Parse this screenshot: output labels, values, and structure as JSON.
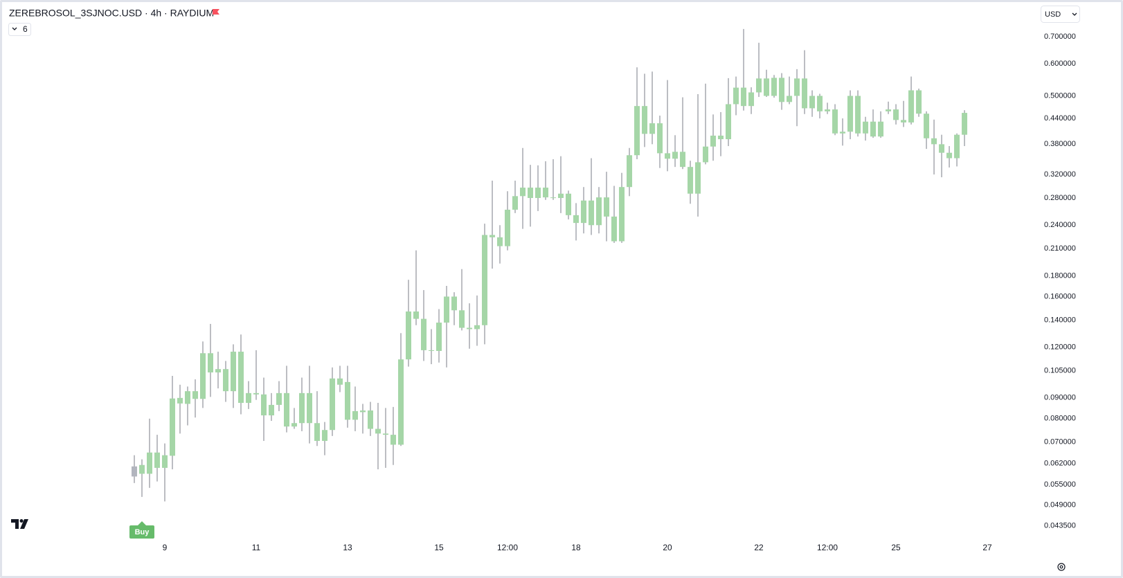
{
  "chart_data": {
    "type": "candlestick",
    "title": "ZEREBROSOL_3SJNOC.USD · 4h · RAYDIUM",
    "indicator_count": "6",
    "currency": "USD",
    "log_scale": true,
    "grid": false,
    "wick_color": "#787b86",
    "x": [
      8.3333,
      8.5,
      8.6667,
      8.8333,
      9,
      9.1667,
      9.3333,
      9.5,
      9.6667,
      9.8333,
      10,
      10.1667,
      10.3333,
      10.5,
      10.6667,
      10.8333,
      11,
      11.1667,
      11.3333,
      11.5,
      11.6667,
      11.8333,
      12,
      12.1667,
      12.3333,
      12.5,
      12.6667,
      12.8333,
      13,
      13.1667,
      13.3333,
      13.5,
      13.6667,
      13.8333,
      14,
      14.1667,
      14.3333,
      14.5,
      14.6667,
      14.8333,
      15,
      15.1667,
      15.3333,
      15.5,
      15.6667,
      15.8333,
      16,
      16.1667,
      16.3333,
      16.5,
      16.6667,
      16.8333,
      17,
      17.1667,
      17.3333,
      17.5,
      17.6667,
      17.8333,
      18,
      18.1667,
      18.3333,
      18.5,
      18.6667,
      18.8333,
      19,
      19.1667,
      19.3333,
      19.5,
      19.6667,
      19.8333,
      20,
      20.1667,
      20.3333,
      20.5,
      20.6667,
      20.8333,
      21,
      21.1667,
      21.3333,
      21.5,
      21.6667,
      21.8333,
      22,
      22.1667,
      22.3333,
      22.5,
      22.6667,
      22.8333,
      23,
      23.1667,
      23.3333,
      23.5,
      23.6667,
      23.8333,
      24,
      24.1667,
      24.3333,
      24.5,
      24.6667,
      24.8333,
      25,
      25.1667,
      25.3333,
      25.5,
      25.6667,
      25.8333,
      26,
      26.1667,
      26.3333,
      26.5
    ],
    "open": [
      0.061,
      0.0585,
      0.0585,
      0.0605,
      0.0605,
      0.0648,
      0.0872,
      0.087,
      0.0895,
      0.0895,
      0.116,
      0.104,
      0.106,
      0.0935,
      0.117,
      0.0875,
      0.0925,
      0.0918,
      0.0815,
      0.0865,
      0.0925,
      0.0765,
      0.078,
      0.0925,
      0.078,
      0.0705,
      0.075,
      0.1005,
      0.0985,
      0.0795,
      0.083,
      0.0838,
      0.0755,
      0.0735,
      0.073,
      0.069,
      0.112,
      0.147,
      0.141,
      0.118,
      0.1175,
      0.138,
      0.16,
      0.148,
      0.134,
      0.133,
      0.136,
      0.227,
      0.224,
      0.213,
      0.262,
      0.283,
      0.297,
      0.28,
      0.297,
      0.281,
      0.28,
      0.287,
      0.254,
      0.243,
      0.276,
      0.24,
      0.281,
      0.252,
      0.219,
      0.298,
      0.357,
      0.472,
      0.403,
      0.428,
      0.361,
      0.35,
      0.364,
      0.334,
      0.287,
      0.343,
      0.375,
      0.399,
      0.391,
      0.477,
      0.524,
      0.472,
      0.51,
      0.552,
      0.5,
      0.554,
      0.483,
      0.5,
      0.552,
      0.466,
      0.5,
      0.458,
      0.463,
      0.404,
      0.408,
      0.5,
      0.404,
      0.432,
      0.397,
      0.458,
      0.463,
      0.436,
      0.43,
      0.516,
      0.452,
      0.393,
      0.38,
      0.362,
      0.351,
      0.401
    ],
    "high": [
      0.065,
      0.0635,
      0.08,
      0.073,
      0.0695,
      0.102,
      0.097,
      0.096,
      0.1,
      0.124,
      0.137,
      0.117,
      0.111,
      0.122,
      0.129,
      0.099,
      0.118,
      0.101,
      0.0925,
      0.099,
      0.108,
      0.085,
      0.101,
      0.108,
      0.0935,
      0.0785,
      0.107,
      0.108,
      0.108,
      0.096,
      0.087,
      0.088,
      0.0875,
      0.085,
      0.0855,
      0.13,
      0.176,
      0.208,
      0.166,
      0.133,
      0.149,
      0.17,
      0.164,
      0.187,
      0.154,
      0.161,
      0.242,
      0.309,
      0.24,
      0.291,
      0.309,
      0.372,
      0.338,
      0.337,
      0.345,
      0.349,
      0.355,
      0.292,
      0.272,
      0.298,
      0.351,
      0.298,
      0.325,
      0.3,
      0.323,
      0.372,
      0.588,
      0.567,
      0.574,
      0.447,
      0.547,
      0.4,
      0.496,
      0.346,
      0.505,
      0.536,
      0.45,
      0.456,
      0.553,
      0.558,
      0.731,
      0.525,
      0.676,
      0.58,
      0.563,
      0.569,
      0.558,
      0.582,
      0.648,
      0.516,
      0.506,
      0.481,
      0.477,
      0.44,
      0.516,
      0.516,
      0.444,
      0.463,
      0.458,
      0.484,
      0.477,
      0.486,
      0.558,
      0.521,
      0.458,
      0.437,
      0.401,
      0.376,
      0.404,
      0.461
    ],
    "low": [
      0.0555,
      0.0513,
      0.054,
      0.056,
      0.05,
      0.06,
      0.0735,
      0.077,
      0.0805,
      0.085,
      0.0905,
      0.095,
      0.088,
      0.085,
      0.082,
      0.0845,
      0.089,
      0.0705,
      0.079,
      0.0835,
      0.074,
      0.0755,
      0.0745,
      0.0695,
      0.0685,
      0.065,
      0.0725,
      0.093,
      0.076,
      0.0745,
      0.0735,
      0.0725,
      0.06,
      0.0605,
      0.0615,
      0.0685,
      0.1075,
      0.136,
      0.111,
      0.109,
      0.11,
      0.107,
      0.136,
      0.132,
      0.119,
      0.121,
      0.122,
      0.1875,
      0.193,
      0.208,
      0.257,
      0.235,
      0.238,
      0.26,
      0.277,
      0.277,
      0.257,
      0.248,
      0.22,
      0.229,
      0.227,
      0.229,
      0.219,
      0.217,
      0.217,
      0.283,
      0.349,
      0.374,
      0.38,
      0.332,
      0.326,
      0.334,
      0.33,
      0.271,
      0.252,
      0.339,
      0.346,
      0.355,
      0.376,
      0.448,
      0.46,
      0.451,
      0.497,
      0.497,
      0.495,
      0.462,
      0.477,
      0.421,
      0.451,
      0.444,
      0.44,
      0.451,
      0.4,
      0.377,
      0.391,
      0.397,
      0.388,
      0.394,
      0.394,
      0.451,
      0.425,
      0.419,
      0.425,
      0.444,
      0.37,
      0.32,
      0.315,
      0.333,
      0.335,
      0.376
    ],
    "close": [
      0.0576,
      0.0615,
      0.066,
      0.066,
      0.065,
      0.0897,
      0.09,
      0.0935,
      0.0935,
      0.116,
      0.104,
      0.106,
      0.0935,
      0.117,
      0.0875,
      0.0925,
      0.0918,
      0.0815,
      0.0865,
      0.0925,
      0.0765,
      0.078,
      0.0925,
      0.078,
      0.0705,
      0.075,
      0.1005,
      0.097,
      0.0795,
      0.0835,
      0.0838,
      0.0755,
      0.0735,
      0.073,
      0.069,
      0.112,
      0.147,
      0.141,
      0.118,
      0.1175,
      0.138,
      0.16,
      0.148,
      0.134,
      0.133,
      0.136,
      0.227,
      0.224,
      0.213,
      0.262,
      0.283,
      0.297,
      0.28,
      0.297,
      0.281,
      0.28,
      0.287,
      0.254,
      0.243,
      0.276,
      0.24,
      0.281,
      0.252,
      0.219,
      0.298,
      0.357,
      0.472,
      0.403,
      0.428,
      0.361,
      0.35,
      0.364,
      0.334,
      0.287,
      0.343,
      0.375,
      0.399,
      0.391,
      0.477,
      0.524,
      0.472,
      0.51,
      0.552,
      0.5,
      0.554,
      0.483,
      0.5,
      0.552,
      0.466,
      0.5,
      0.458,
      0.463,
      0.404,
      0.408,
      0.5,
      0.404,
      0.432,
      0.397,
      0.432,
      0.463,
      0.436,
      0.43,
      0.516,
      0.452,
      0.393,
      0.38,
      0.362,
      0.351,
      0.401,
      0.454
    ],
    "colors": [
      "#b2b5be",
      "#a5d6a7",
      "#a5d6a7",
      "#a5d6a7",
      "#a5d6a7",
      "#a5d6a7",
      "#a5d6a7",
      "#a5d6a7",
      "#a5d6a7",
      "#a5d6a7",
      "#a5d6a7",
      "#a5d6a7",
      "#a5d6a7",
      "#a5d6a7",
      "#a5d6a7",
      "#a5d6a7",
      "#a5d6a7",
      "#a5d6a7",
      "#a5d6a7",
      "#a5d6a7",
      "#a5d6a7",
      "#a5d6a7",
      "#a5d6a7",
      "#a5d6a7",
      "#a5d6a7",
      "#a5d6a7",
      "#a5d6a7",
      "#a5d6a7",
      "#a5d6a7",
      "#a5d6a7",
      "#a5d6a7",
      "#a5d6a7",
      "#a5d6a7",
      "#a5d6a7",
      "#a5d6a7",
      "#a5d6a7",
      "#a5d6a7",
      "#a5d6a7",
      "#a5d6a7",
      "#a5d6a7",
      "#a5d6a7",
      "#a5d6a7",
      "#a5d6a7",
      "#a5d6a7",
      "#a5d6a7",
      "#a5d6a7",
      "#a5d6a7",
      "#a5d6a7",
      "#a5d6a7",
      "#a5d6a7",
      "#a5d6a7",
      "#a5d6a7",
      "#a5d6a7",
      "#a5d6a7",
      "#a5d6a7",
      "#a5d6a7",
      "#a5d6a7",
      "#a5d6a7",
      "#a5d6a7",
      "#a5d6a7",
      "#a5d6a7",
      "#a5d6a7",
      "#a5d6a7",
      "#a5d6a7",
      "#a5d6a7",
      "#a5d6a7",
      "#a5d6a7",
      "#a5d6a7",
      "#a5d6a7",
      "#a5d6a7",
      "#a5d6a7",
      "#a5d6a7",
      "#a5d6a7",
      "#a5d6a7",
      "#a5d6a7",
      "#a5d6a7",
      "#a5d6a7",
      "#a5d6a7",
      "#a5d6a7",
      "#a5d6a7",
      "#a5d6a7",
      "#a5d6a7",
      "#a5d6a7",
      "#a5d6a7",
      "#a5d6a7",
      "#a5d6a7",
      "#a5d6a7",
      "#a5d6a7",
      "#a5d6a7",
      "#a5d6a7",
      "#a5d6a7",
      "#a5d6a7",
      "#a5d6a7",
      "#a5d6a7",
      "#a5d6a7",
      "#a5d6a7",
      "#a5d6a7",
      "#a5d6a7",
      "#a5d6a7",
      "#a5d6a7",
      "#a5d6a7",
      "#a5d6a7",
      "#a5d6a7",
      "#a5d6a7",
      "#a5d6a7",
      "#a5d6a7",
      "#a5d6a7",
      "#a5d6a7",
      "#a5d6a7",
      "#a5d6a7"
    ],
    "markers": [
      {
        "x": 8.5,
        "label": "Buy",
        "color": "#66bb6a"
      }
    ],
    "xlim": [
      5.47,
      28.09
    ],
    "xticks": [
      9,
      11,
      13,
      15,
      {
        "value": 16.5,
        "label": "12:00"
      },
      18,
      20,
      22,
      {
        "value": 23.5,
        "label": "12:00"
      },
      25,
      27
    ],
    "ylim": [
      0.0405,
      0.845
    ],
    "yticks": [
      {
        "value": 0.7,
        "label": "0.700000"
      },
      {
        "value": 0.6,
        "label": "0.600000"
      },
      {
        "value": 0.5,
        "label": "0.500000"
      },
      {
        "value": 0.44,
        "label": "0.440000"
      },
      {
        "value": 0.38,
        "label": "0.380000"
      },
      {
        "value": 0.32,
        "label": "0.320000"
      },
      {
        "value": 0.28,
        "label": "0.280000"
      },
      {
        "value": 0.24,
        "label": "0.240000"
      },
      {
        "value": 0.21,
        "label": "0.210000"
      },
      {
        "value": 0.18,
        "label": "0.180000"
      },
      {
        "value": 0.16,
        "label": "0.160000"
      },
      {
        "value": 0.14,
        "label": "0.140000"
      },
      {
        "value": 0.12,
        "label": "0.120000"
      },
      {
        "value": 0.105,
        "label": "0.105000"
      },
      {
        "value": 0.09,
        "label": "0.090000"
      },
      {
        "value": 0.08,
        "label": "0.080000"
      },
      {
        "value": 0.07,
        "label": "0.070000"
      },
      {
        "value": 0.062,
        "label": "0.062000"
      },
      {
        "value": 0.055,
        "label": "0.055000"
      },
      {
        "value": 0.049,
        "label": "0.049000"
      },
      {
        "value": 0.0435,
        "label": "0.043500"
      }
    ]
  }
}
